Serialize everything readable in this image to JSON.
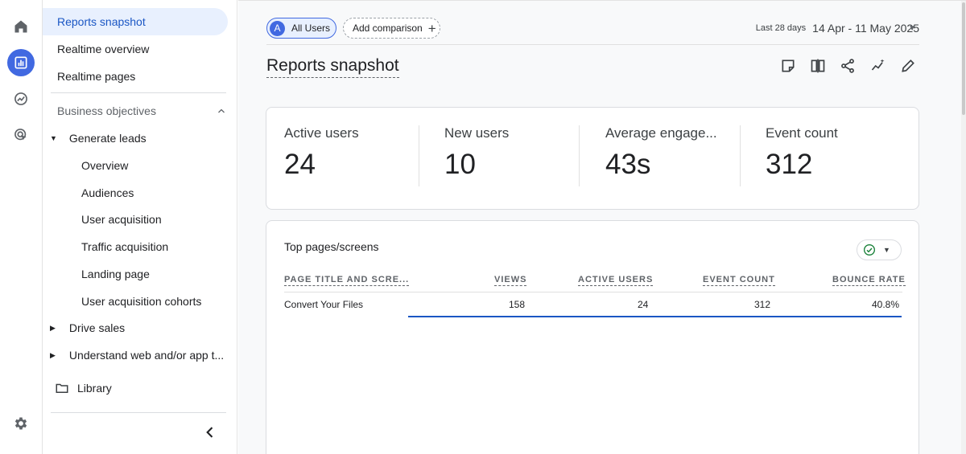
{
  "rail": {
    "items": [
      {
        "icon": "home-icon"
      },
      {
        "icon": "reports-icon",
        "active": true
      },
      {
        "icon": "explore-icon"
      },
      {
        "icon": "advertising-icon"
      },
      {
        "icon": "settings-icon"
      }
    ]
  },
  "nav": {
    "items": {
      "reports_snapshot": "Reports snapshot",
      "realtime_overview": "Realtime overview",
      "realtime_pages": "Realtime pages",
      "business_objectives": "Business objectives",
      "generate_leads": "Generate leads",
      "overview": "Overview",
      "audiences": "Audiences",
      "user_acquisition": "User acquisition",
      "traffic_acquisition": "Traffic acquisition",
      "landing_page": "Landing page",
      "user_acquisition_cohorts": "User acquisition cohorts",
      "drive_sales": "Drive sales",
      "understand": "Understand web and/or app t...",
      "library": "Library"
    }
  },
  "header": {
    "users_chip_avatar": "A",
    "users_chip": "All Users",
    "add_comparison": "Add comparison",
    "date_label": "Last 28 days",
    "date_range": "14 Apr - 11 May 2025",
    "title": "Reports snapshot"
  },
  "metrics": [
    {
      "label": "Active users",
      "value": "24"
    },
    {
      "label": "New users",
      "value": "10"
    },
    {
      "label": "Average engage...",
      "value": "43s"
    },
    {
      "label": "Event count",
      "value": "312"
    }
  ],
  "table": {
    "title": "Top pages/screens",
    "columns": [
      "PAGE TITLE AND SCRE...",
      "VIEWS",
      "ACTIVE USERS",
      "EVENT COUNT",
      "BOUNCE RATE"
    ],
    "rows": [
      {
        "page": "Convert Your Files",
        "views": "158",
        "active_users": "24",
        "event_count": "312",
        "bounce_rate": "40.8%"
      }
    ]
  },
  "colors": {
    "accent": "#4169e1",
    "active_nav_bg": "#e8f0fe",
    "check_green": "#188038"
  }
}
